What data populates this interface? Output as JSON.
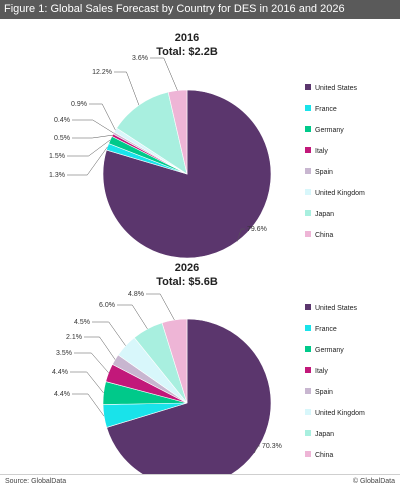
{
  "figure": {
    "title": "Figure 1: Global Sales Forecast by Country for DES in 2016 and 2026",
    "source": "Source: GlobalData",
    "copyright": "© GlobalData"
  },
  "chart_data": [
    {
      "type": "pie",
      "title": "2016",
      "subtitle": "Total: $2.2B",
      "categories": [
        "United States",
        "France",
        "Germany",
        "Italy",
        "Spain",
        "United Kingdom",
        "Japan",
        "China"
      ],
      "values": [
        79.6,
        1.3,
        1.5,
        0.5,
        0.4,
        0.9,
        12.2,
        3.6
      ],
      "labels": [
        "79.6%",
        "1.3%",
        "1.5%",
        "0.5%",
        "0.4%",
        "0.9%",
        "12.2%",
        "3.6%"
      ],
      "colors": [
        "#5b366d",
        "#19e3ea",
        "#00c98a",
        "#c2187a",
        "#c8b6d0",
        "#d8f7fb",
        "#a8efdf",
        "#eeb5d6"
      ],
      "legend": "right"
    },
    {
      "type": "pie",
      "title": "2026",
      "subtitle": "Total: $5.6B",
      "categories": [
        "United States",
        "France",
        "Germany",
        "Italy",
        "Spain",
        "United Kingdom",
        "Japan",
        "China"
      ],
      "values": [
        70.3,
        4.4,
        4.4,
        3.5,
        2.1,
        4.5,
        6.0,
        4.8
      ],
      "labels": [
        "70.3%",
        "4.4%",
        "4.4%",
        "3.5%",
        "2.1%",
        "4.5%",
        "6.0%",
        "4.8%"
      ],
      "colors": [
        "#5b366d",
        "#19e3ea",
        "#00c98a",
        "#c2187a",
        "#c8b6d0",
        "#d8f7fb",
        "#a8efdf",
        "#eeb5d6"
      ],
      "legend": "right"
    }
  ]
}
